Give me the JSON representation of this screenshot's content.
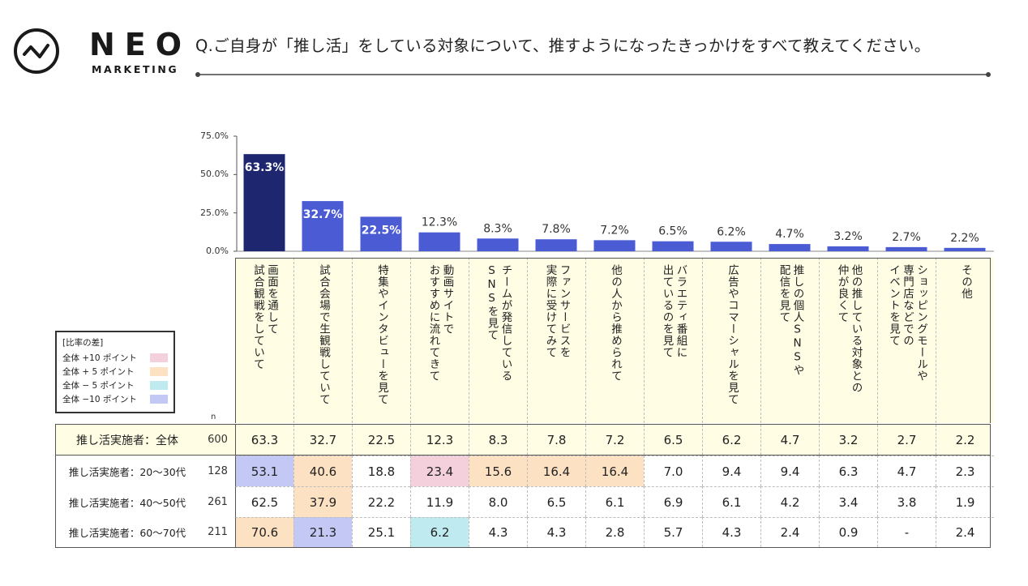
{
  "brand": {
    "name": "NEO",
    "sub": "MARKETING"
  },
  "question": "Q.ご自身が「推し活」をしている対象について、推すようになったきっかけをすべて教えてください。",
  "colors": {
    "bar_main": "#4a5bd4",
    "bar_highlight": "#1e2670",
    "header_bg": "#fffde3",
    "plus10": "#f3d0db",
    "plus5": "#fde1c3",
    "minus5": "#bfeaf0",
    "minus10": "#c3c9f4"
  },
  "legend": {
    "title": "[比率の差]",
    "items": [
      {
        "label": "全体 +10 ポイント",
        "color_key": "plus10"
      },
      {
        "label": "全体 + 5 ポイント",
        "color_key": "plus5"
      },
      {
        "label": "全体 − 5 ポイント",
        "color_key": "minus5"
      },
      {
        "label": "全体 −10 ポイント",
        "color_key": "minus10"
      }
    ]
  },
  "n_label": "n",
  "chart_data": {
    "type": "bar",
    "title": "Q.ご自身が「推し活」をしている対象について、推すようになったきっかけをすべて教えてください。",
    "ylim": [
      0,
      75
    ],
    "yticks": [
      "75.0%",
      "50.0%",
      "25.0%",
      "0.0%"
    ],
    "ytick_values": [
      75,
      50,
      25,
      0
    ],
    "categories": [
      "画面を通して\n試合観戦をしていて",
      "試合会場で生観戦していて",
      "特集やインタビューを見て",
      "動画サイトで\nおすすめに流れてきて",
      "チームが発信している\nSNSを見て",
      "ファンサービスを\n実際に受けてみて",
      "他の人から推められて",
      "バラエティ番組に\n出ているのを見て",
      "広告やコマーシャルを見て",
      "推しの個人SNSや\n配信を見て",
      "他の推している対象との\n仲が良くて",
      "ショッピングモールや\n専門店などでの\nイベントを見て",
      "その他"
    ],
    "values": [
      63.3,
      32.7,
      22.5,
      12.3,
      8.3,
      7.8,
      7.2,
      6.5,
      6.2,
      4.7,
      3.2,
      2.7,
      2.2
    ],
    "labels": [
      "63.3%",
      "32.7%",
      "22.5%",
      "12.3%",
      "8.3%",
      "7.8%",
      "7.2%",
      "6.5%",
      "6.2%",
      "4.7%",
      "3.2%",
      "2.7%",
      "2.2%"
    ]
  },
  "table": {
    "rows": [
      {
        "label": "推し活実施者：全体",
        "n": "600",
        "kind": "total",
        "values": [
          "63.3",
          "32.7",
          "22.5",
          "12.3",
          "8.3",
          "7.8",
          "7.2",
          "6.5",
          "6.2",
          "4.7",
          "3.2",
          "2.7",
          "2.2"
        ],
        "highlights": [
          "",
          "",
          "",
          "",
          "",
          "",
          "",
          "",
          "",
          "",
          "",
          "",
          ""
        ]
      },
      {
        "label": "推し活実施者：20〜30代",
        "n": "128",
        "kind": "sub",
        "values": [
          "53.1",
          "40.6",
          "18.8",
          "23.4",
          "15.6",
          "16.4",
          "16.4",
          "7.0",
          "9.4",
          "9.4",
          "6.3",
          "4.7",
          "2.3"
        ],
        "highlights": [
          "minus10",
          "plus5",
          "",
          "plus10",
          "plus5",
          "plus5",
          "plus5",
          "",
          "",
          "",
          "",
          "",
          ""
        ]
      },
      {
        "label": "推し活実施者：40〜50代",
        "n": "261",
        "kind": "sub",
        "values": [
          "62.5",
          "37.9",
          "22.2",
          "11.9",
          "8.0",
          "6.5",
          "6.1",
          "6.9",
          "6.1",
          "4.2",
          "3.4",
          "3.8",
          "1.9"
        ],
        "highlights": [
          "",
          "plus5",
          "",
          "",
          "",
          "",
          "",
          "",
          "",
          "",
          "",
          "",
          ""
        ]
      },
      {
        "label": "推し活実施者：60〜70代",
        "n": "211",
        "kind": "sub",
        "values": [
          "70.6",
          "21.3",
          "25.1",
          "6.2",
          "4.3",
          "4.3",
          "2.8",
          "5.7",
          "4.3",
          "2.4",
          "0.9",
          "-",
          "2.4"
        ],
        "highlights": [
          "plus5",
          "minus10",
          "",
          "minus5",
          "",
          "",
          "",
          "",
          "",
          "",
          "",
          "",
          ""
        ]
      }
    ]
  }
}
